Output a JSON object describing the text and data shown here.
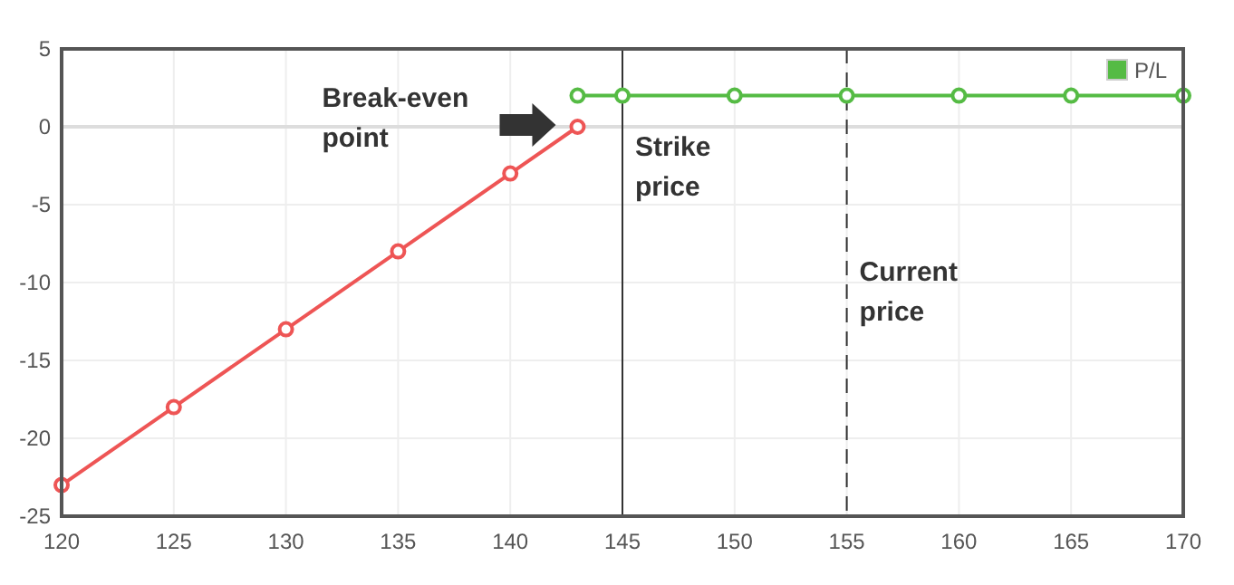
{
  "chart_data": {
    "type": "line",
    "xlim": [
      120,
      170
    ],
    "xticks": [
      120,
      125,
      130,
      135,
      140,
      145,
      150,
      155,
      160,
      165,
      170
    ],
    "ylim": [
      -25,
      5
    ],
    "yticks": [
      -25,
      -20,
      -15,
      -10,
      -5,
      0,
      5
    ],
    "grid": true,
    "legend": "top right",
    "marker": "circle",
    "line_style": "solid",
    "series": [
      {
        "color": "#ee5555",
        "x": [
          120,
          125,
          130,
          135,
          140,
          143
        ],
        "values": [
          -23,
          -18,
          -13,
          -8,
          -3,
          0
        ]
      },
      {
        "name": "P/L",
        "color": "#55bb44",
        "x": [
          143,
          145,
          150,
          155,
          160,
          165,
          170
        ],
        "values": [
          2,
          2,
          2,
          2,
          2,
          2,
          2
        ]
      }
    ],
    "ref_lines": [
      {
        "axis": "y",
        "value": 0,
        "color": "#dddddd",
        "line_style": "solid"
      },
      {
        "axis": "x",
        "value": 145,
        "label": "Strike price",
        "color": "#333333",
        "line_style": "solid"
      },
      {
        "axis": "x",
        "value": 155,
        "label": "Current price",
        "color": "#333333",
        "line_style": "dashed"
      }
    ],
    "annotations": [
      "Break-even point"
    ]
  }
}
